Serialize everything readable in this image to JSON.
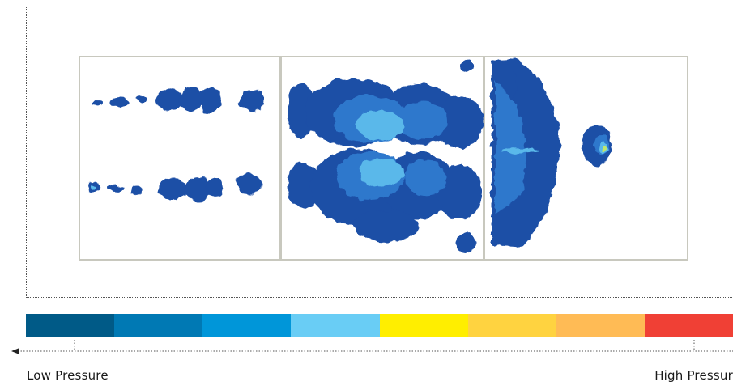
{
  "legend": {
    "low_label": "Low Pressure",
    "high_label": "High Pressur"
  },
  "scale_colors": [
    "#005a87",
    "#0079b4",
    "#0096d9",
    "#69cdf5",
    "#ffee00",
    "#ffd340",
    "#ffbb55",
    "#f04035"
  ],
  "map_colors": {
    "panel_border": "#c8c8be",
    "low": "#1e4fa6",
    "mid": "#2f78cc",
    "high": "#5ab8ea",
    "peak": "#bfe66e"
  }
}
